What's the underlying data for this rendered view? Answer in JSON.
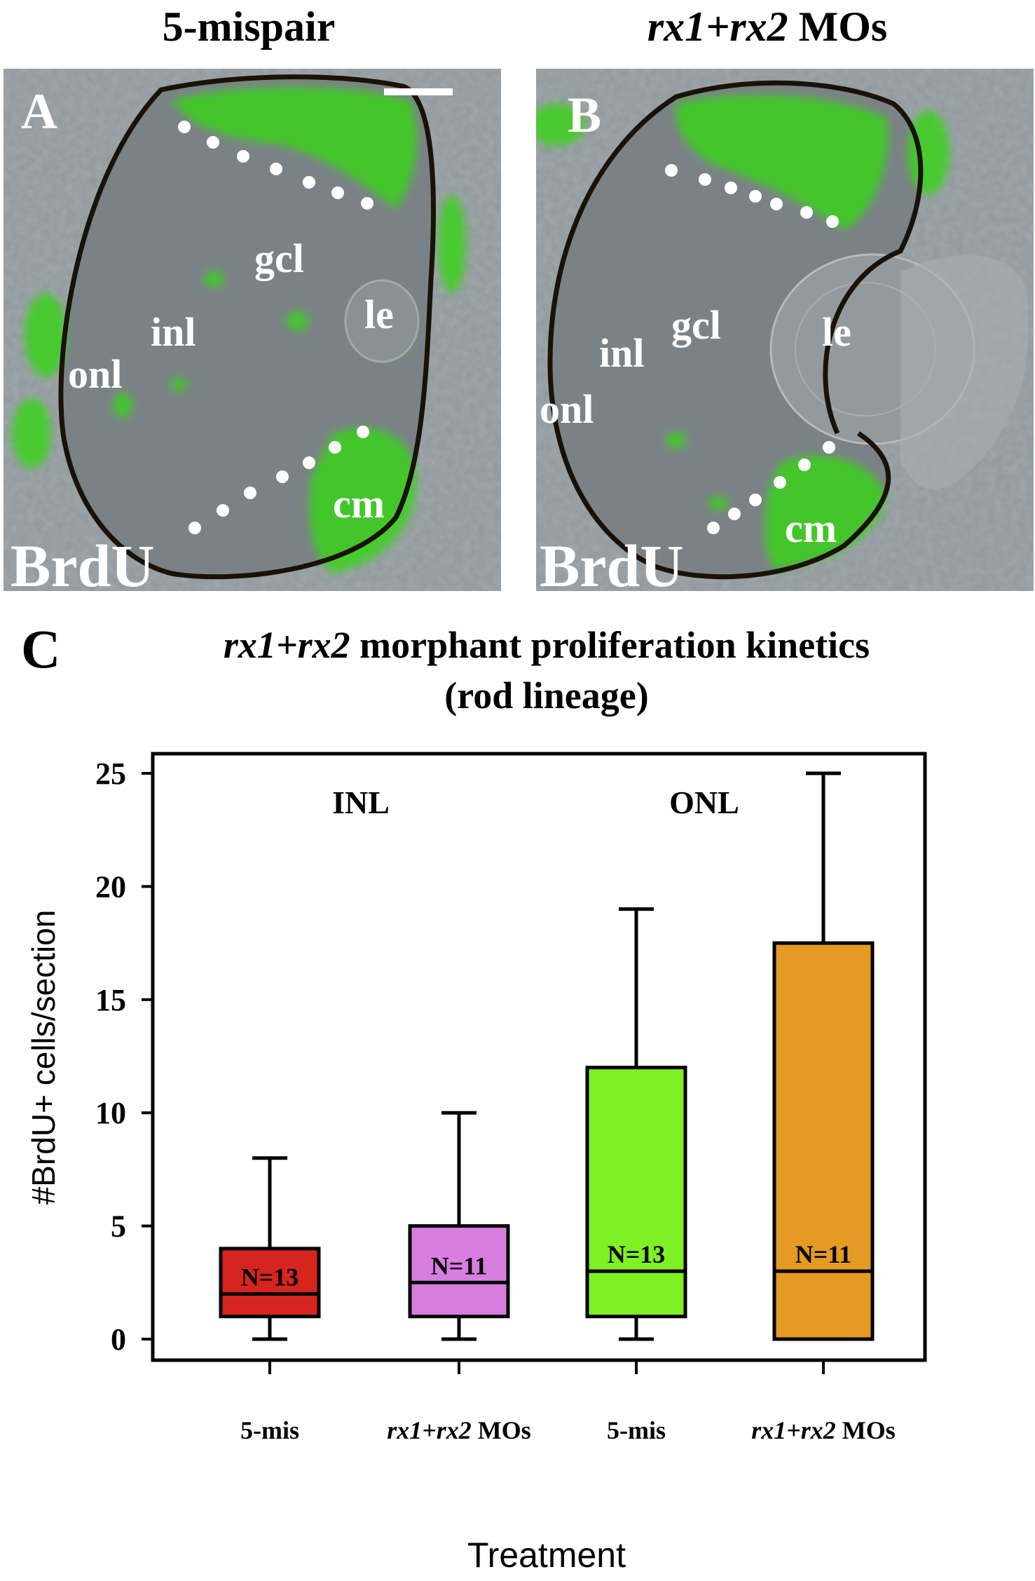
{
  "panel_a": {
    "heading": "5-mispair",
    "letter": "A",
    "stain": "BrdU",
    "labels": {
      "gcl": "gcl",
      "inl": "inl",
      "onl": "onl",
      "le": "le",
      "cm": "cm"
    }
  },
  "panel_b": {
    "heading_italic": "rx1+rx2",
    "heading_rest": " MOs",
    "letter": "B",
    "stain": "BrdU",
    "labels": {
      "gcl": "gcl",
      "inl": "inl",
      "onl": "onl",
      "le": "le",
      "cm": "cm"
    }
  },
  "colors": {
    "tissue_background": "#8f979c",
    "brdu_signal": "#3ad21a",
    "pigment_border": "#1a1208",
    "marker_dots": "#ffffff",
    "box_5mis_inl": "#d6241e",
    "box_mos_inl": "#d77ee0",
    "box_5mis_onl": "#7ef024",
    "box_mos_onl": "#e59a24"
  },
  "chart_data": {
    "type": "box",
    "panel_letter": "C",
    "title_italic": "rx1+rx2",
    "title_rest": " morphant proliferation kinetics",
    "title_line2": "(rod lineage)",
    "xlabel": "Treatment",
    "ylabel": "#BrdU+ cells/section",
    "ylim": [
      0,
      26
    ],
    "yticks": [
      0,
      5,
      10,
      15,
      20,
      25
    ],
    "groups": [
      "INL",
      "ONL"
    ],
    "boxes": [
      {
        "category": "5-mis",
        "category_italic": "",
        "category_rest": "5-mis",
        "group": "INL",
        "n_label": "N=13",
        "min": 0,
        "q1": 1,
        "median": 2,
        "q3": 4,
        "max": 8,
        "color": "#d6241e"
      },
      {
        "category": "rx1+rx2 MOs",
        "category_italic": "rx1+rx2",
        "category_rest": " MOs",
        "group": "INL",
        "n_label": "N=11",
        "min": 0,
        "q1": 1,
        "median": 2.5,
        "q3": 5,
        "max": 10,
        "color": "#d77ee0"
      },
      {
        "category": "5-mis",
        "category_italic": "",
        "category_rest": "5-mis",
        "group": "ONL",
        "n_label": "N=13",
        "min": 0,
        "q1": 1,
        "median": 3,
        "q3": 12,
        "max": 19,
        "color": "#7ef024"
      },
      {
        "category": "rx1+rx2 MOs",
        "category_italic": "rx1+rx2",
        "category_rest": " MOs",
        "group": "ONL",
        "n_label": "N=11",
        "min": 0,
        "q1": 0,
        "median": 3,
        "q3": 17.5,
        "max": 25,
        "color": "#e59a24"
      }
    ]
  }
}
